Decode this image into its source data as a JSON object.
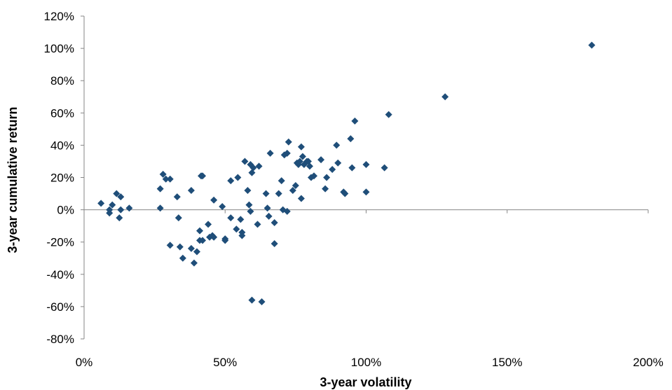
{
  "chart_data": {
    "type": "scatter",
    "title": "",
    "xlabel": "3-year volatility",
    "ylabel": "3-year cumulative return",
    "xlim": [
      0,
      200
    ],
    "ylim": [
      -80,
      120
    ],
    "x_ticks": [
      0,
      50,
      100,
      150,
      200
    ],
    "y_ticks": [
      -80,
      -60,
      -40,
      -20,
      0,
      20,
      40,
      60,
      80,
      100,
      120
    ],
    "x_tick_labels": [
      "0%",
      "50%",
      "100%",
      "150%",
      "200%"
    ],
    "y_tick_labels": [
      "-80%",
      "-60%",
      "-40%",
      "-20%",
      "0%",
      "20%",
      "40%",
      "60%",
      "80%",
      "100%",
      "120%"
    ],
    "grid": false,
    "legend": "none",
    "marker": "diamond",
    "marker_color": "#1f4e79",
    "series": [
      {
        "points": [
          [
            6,
            4
          ],
          [
            9,
            0
          ],
          [
            9,
            -2
          ],
          [
            10,
            3
          ],
          [
            11.5,
            10
          ],
          [
            12.5,
            -5
          ],
          [
            13,
            0
          ],
          [
            13,
            8
          ],
          [
            16,
            1
          ],
          [
            27,
            13
          ],
          [
            27,
            1
          ],
          [
            28,
            22
          ],
          [
            29,
            19
          ],
          [
            30.5,
            -22
          ],
          [
            30.5,
            19
          ],
          [
            33,
            8
          ],
          [
            33.5,
            -5
          ],
          [
            34,
            -23
          ],
          [
            35,
            -30
          ],
          [
            38,
            12
          ],
          [
            38,
            -24
          ],
          [
            39,
            -33
          ],
          [
            40,
            -26
          ],
          [
            41,
            -19
          ],
          [
            41,
            -13
          ],
          [
            41.5,
            21
          ],
          [
            42,
            21
          ],
          [
            42,
            -19
          ],
          [
            44,
            -9
          ],
          [
            44.5,
            -17
          ],
          [
            45.5,
            -16
          ],
          [
            46,
            -17
          ],
          [
            46,
            6
          ],
          [
            49,
            2
          ],
          [
            50,
            -18
          ],
          [
            50,
            -19
          ],
          [
            52,
            -5
          ],
          [
            52,
            18
          ],
          [
            54,
            -12
          ],
          [
            54.5,
            20
          ],
          [
            55.5,
            -6
          ],
          [
            56,
            -16
          ],
          [
            56,
            -14
          ],
          [
            57,
            30
          ],
          [
            58,
            12
          ],
          [
            58.5,
            3
          ],
          [
            59,
            -1
          ],
          [
            59,
            28
          ],
          [
            59.5,
            23
          ],
          [
            59.5,
            -56
          ],
          [
            60,
            26
          ],
          [
            61.5,
            -9
          ],
          [
            62,
            27
          ],
          [
            63,
            -57
          ],
          [
            64.5,
            10
          ],
          [
            65,
            1
          ],
          [
            65.5,
            -4
          ],
          [
            66,
            35
          ],
          [
            67.5,
            -8
          ],
          [
            67.5,
            -21
          ],
          [
            69,
            10
          ],
          [
            70,
            18
          ],
          [
            70.5,
            0
          ],
          [
            71,
            34
          ],
          [
            72,
            35
          ],
          [
            72,
            -1
          ],
          [
            72.5,
            42
          ],
          [
            74,
            12
          ],
          [
            75,
            15
          ],
          [
            75.5,
            29
          ],
          [
            76,
            28
          ],
          [
            76.5,
            30
          ],
          [
            77,
            7
          ],
          [
            77,
            39
          ],
          [
            77.5,
            33
          ],
          [
            78,
            28
          ],
          [
            79,
            30
          ],
          [
            79.5,
            30
          ],
          [
            80,
            27
          ],
          [
            80.5,
            20
          ],
          [
            81.5,
            21
          ],
          [
            84,
            31
          ],
          [
            85.5,
            13
          ],
          [
            86,
            20
          ],
          [
            88,
            25
          ],
          [
            89.5,
            40
          ],
          [
            90,
            29
          ],
          [
            92,
            11
          ],
          [
            92.5,
            10
          ],
          [
            94.5,
            44
          ],
          [
            95,
            26
          ],
          [
            96,
            55
          ],
          [
            100,
            28
          ],
          [
            100,
            11
          ],
          [
            106.5,
            26
          ],
          [
            108,
            59
          ],
          [
            128,
            70
          ],
          [
            180,
            102
          ]
        ]
      }
    ]
  }
}
